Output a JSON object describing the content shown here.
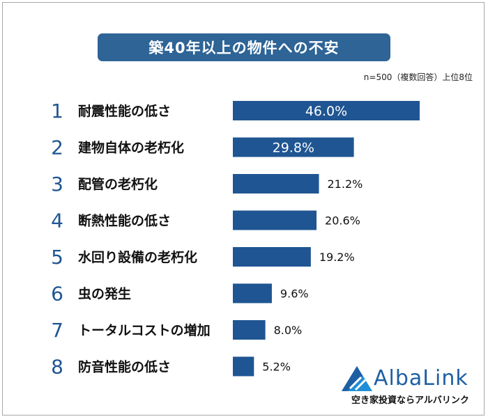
{
  "title": "築40年以上の物件への不安",
  "note": "n=500（複数回答）上位8位",
  "brand": {
    "name": "AlbaLink",
    "tagline": "空き家投資ならアルバリンク",
    "color": "#1e5fa3"
  },
  "colors": {
    "bar": "#1f5592",
    "title_bg": "#2e6496",
    "rank": "#1f5592"
  },
  "chart_data": {
    "type": "bar",
    "orientation": "horizontal",
    "unit": "%",
    "categories": [
      "耐震性能の低さ",
      "建物自体の老朽化",
      "配管の老朽化",
      "断熱性能の低さ",
      "水回り設備の老朽化",
      "虫の発生",
      "トータルコストの増加",
      "防音性能の低さ"
    ],
    "ranks": [
      "1",
      "2",
      "3",
      "4",
      "5",
      "6",
      "7",
      "8"
    ],
    "values": [
      46.0,
      29.8,
      21.2,
      20.6,
      19.2,
      9.6,
      8.0,
      5.2
    ],
    "labels": [
      "46.0%",
      "29.8%",
      "21.2%",
      "20.6%",
      "19.2%",
      "9.6%",
      "8.0%",
      "5.2%"
    ],
    "xlim": [
      0,
      46.0
    ],
    "grid": false,
    "legend": "none"
  }
}
